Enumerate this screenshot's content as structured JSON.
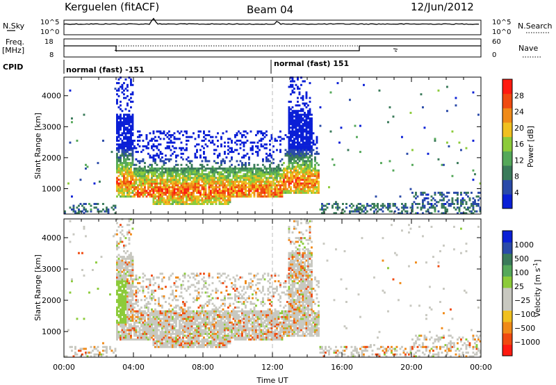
{
  "header": {
    "station": "Kerguelen (fitACF)",
    "beam": "Beam 04",
    "date": "12/Jun/2012"
  },
  "left_labels": {
    "nsky": "N.Sky",
    "freq": "Freq.",
    "mhz": "[MHz]",
    "cpid": "CPID"
  },
  "right_labels": {
    "nsearch": "N.Search",
    "nave": "Nave"
  },
  "nsky_axis": {
    "top": "10^5",
    "bottom": "10^0"
  },
  "freq_axis": {
    "top": "18",
    "bottom": "8"
  },
  "nave_axis": {
    "top": "60",
    "bottom": "0"
  },
  "cpid": {
    "left": "normal (fast) -151",
    "right": "normal (fast) 151"
  },
  "colors": {
    "power": [
      "#0a1fd6",
      "#2a4aa8",
      "#3a7a5a",
      "#55a85a",
      "#8ccb3a",
      "#f0c020",
      "#f08a18",
      "#f04a10",
      "#ff1a10"
    ],
    "velocity": [
      "#ff1a10",
      "#f04a10",
      "#f08a18",
      "#f0c020",
      "#c8c8c0",
      "#c8c8c0",
      "#8ccb3a",
      "#55a85a",
      "#3a7a5a",
      "#2a4aa8",
      "#0a1fd6"
    ]
  },
  "chart_data": [
    {
      "type": "heatmap",
      "title": "Power",
      "xlabel": "",
      "ylabel": "Slant Range [km]",
      "xlim": [
        "00:00",
        "24:00"
      ],
      "ylim": [
        180,
        4600
      ],
      "y_ticks": [
        "1000",
        "2000",
        "3000",
        "4000"
      ],
      "colorbar": {
        "label": "Power [dB]",
        "ticks": [
          "4",
          "8",
          "12",
          "16",
          "20",
          "24",
          "28"
        ],
        "range": [
          0,
          32
        ]
      },
      "dominant_echo_region": {
        "start_hour": 3.0,
        "end_hour": 14.6,
        "min_range_km": 400,
        "max_range_km": 3500
      },
      "peak_power_region": {
        "start_hour": 5.0,
        "end_hour": 9.5,
        "min_range_km": 450,
        "max_range_km": 700,
        "value_db": 28
      }
    },
    {
      "type": "heatmap",
      "title": "Velocity",
      "xlabel": "Time UT",
      "ylabel": "Slant Range [km]",
      "xlim": [
        "00:00",
        "24:00"
      ],
      "ylim": [
        180,
        4600
      ],
      "x_ticks": [
        "00:00",
        "04:00",
        "08:00",
        "12:00",
        "16:00",
        "20:00",
        "00:00"
      ],
      "y_ticks": [
        "1000",
        "2000",
        "3000",
        "4000"
      ],
      "colorbar": {
        "label": "Velocity [m s",
        "label_sup": "-1",
        "label_end": "]",
        "ticks": [
          "1000",
          "500",
          "100",
          "25",
          "−25",
          "−100",
          "−500",
          "−1000"
        ],
        "range": [
          -1200,
          1200
        ]
      },
      "dominant_echo_region": {
        "start_hour": 3.0,
        "end_hour": 14.6,
        "min_range_km": 400,
        "max_range_km": 3500,
        "typical_velocity": "-25 to 25"
      }
    }
  ]
}
